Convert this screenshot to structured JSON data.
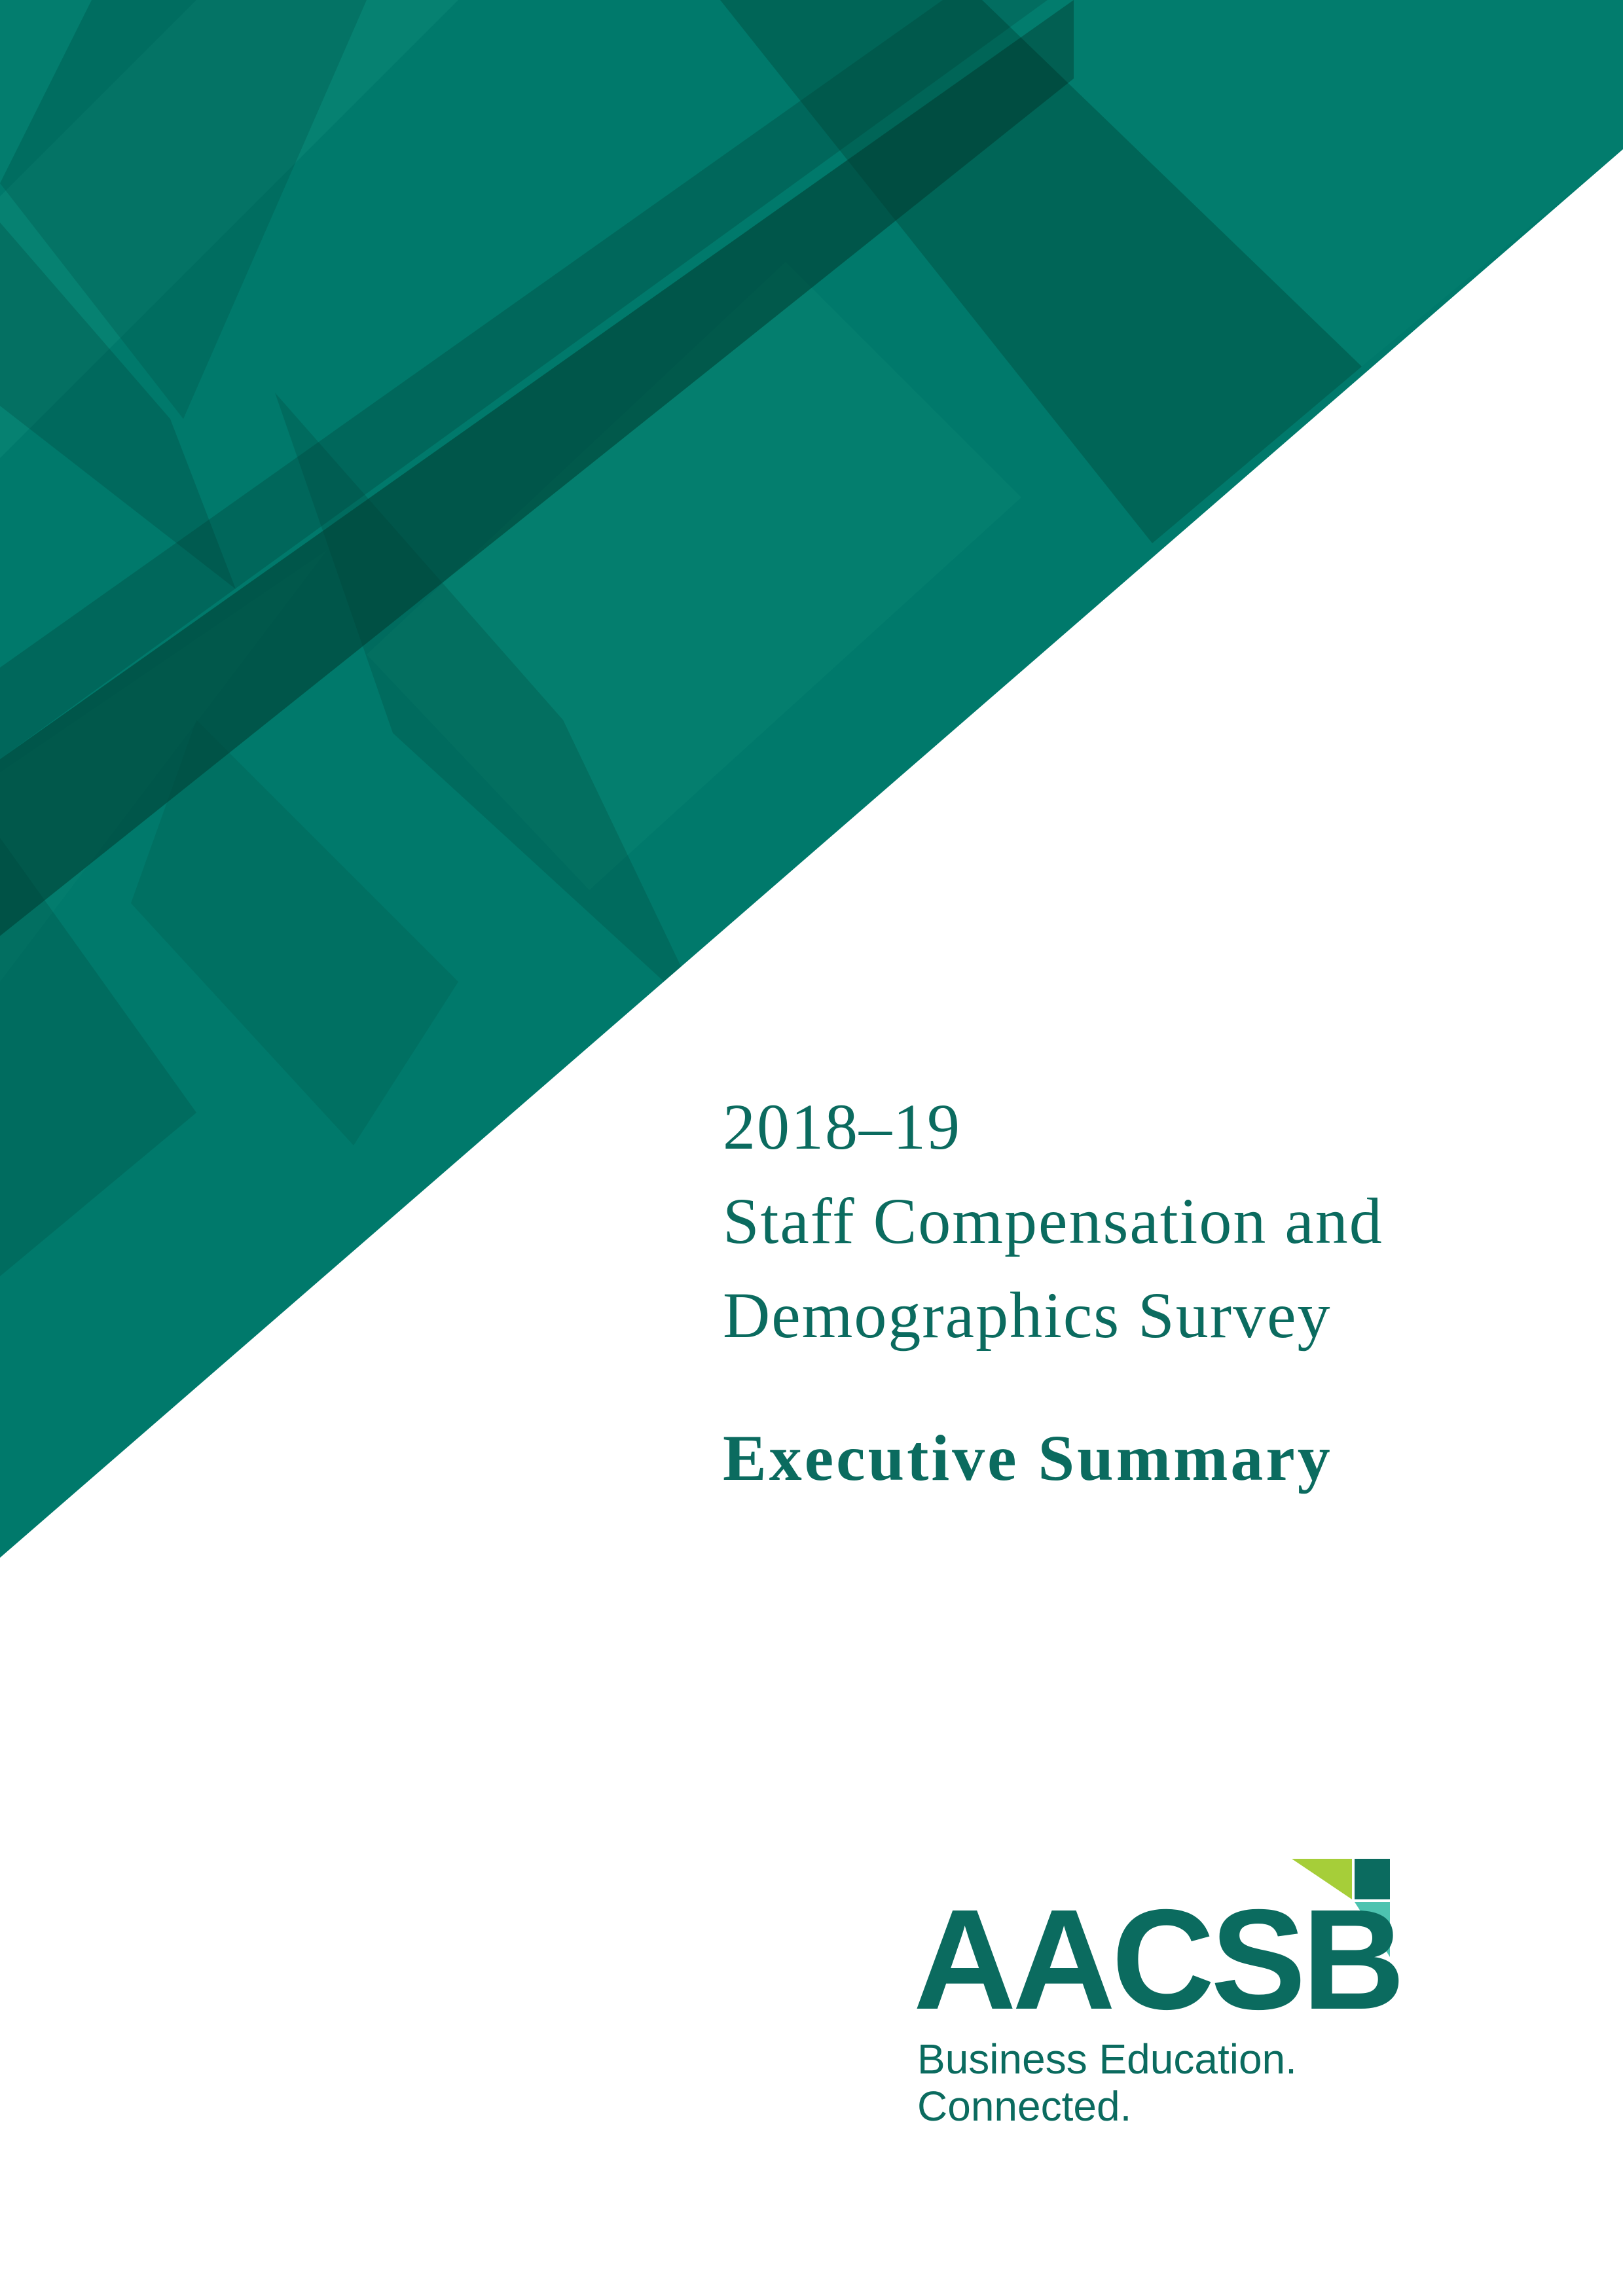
{
  "document": {
    "title_lines": [
      "2018–19",
      "Staff Compensation and",
      "Demographics Survey"
    ],
    "subtitle": "Executive Summary"
  },
  "logo": {
    "wordmark": "AACSB",
    "tagline_lines": [
      "Business Education.",
      "Connected."
    ]
  },
  "colors": {
    "brand_teal": "#0b6b5f",
    "panel_base": "#00796b",
    "band_dark": "#003a30",
    "logo_lime": "#a6ce39",
    "logo_aqua": "#4dc3b0"
  }
}
